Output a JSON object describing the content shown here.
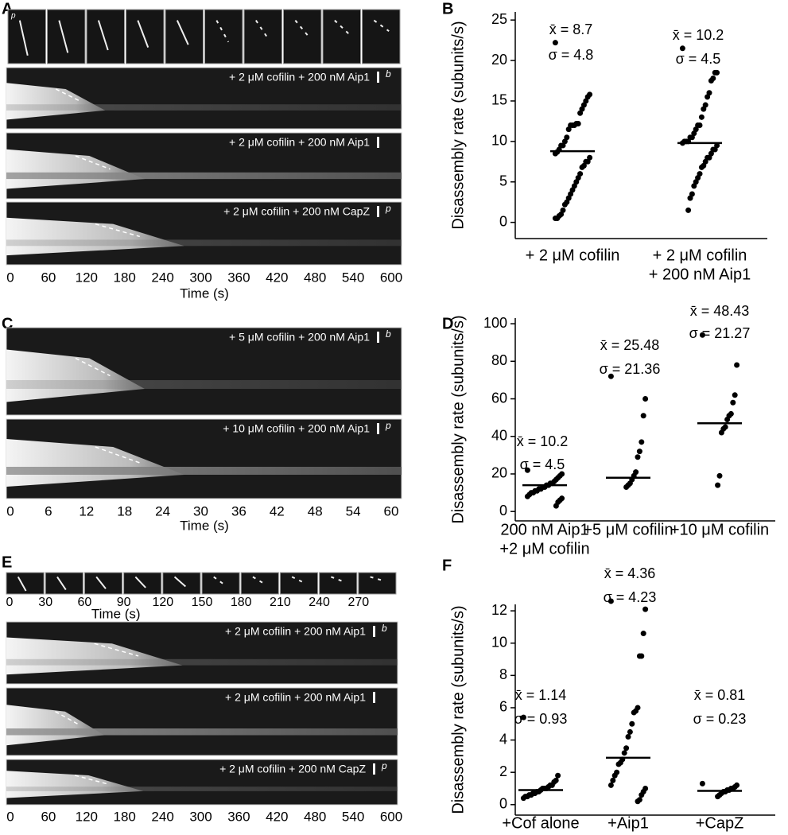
{
  "kymograph_panels": [
    {
      "label": "A",
      "thumb_label": "p",
      "rows": [
        {
          "text": "+ 2 μM cofilin + 200 nM Aip1",
          "end": "b"
        },
        {
          "text": "+ 2  μM cofilin + 200 nM Aip1"
        },
        {
          "text": "+ 2  μM cofilin + 200 nM CapZ",
          "end": "p"
        }
      ],
      "xlim": [
        0,
        600
      ],
      "xticks": [
        0,
        60,
        120,
        180,
        240,
        300,
        360,
        420,
        480,
        540,
        600
      ],
      "xlabel": "Time (s)"
    },
    {
      "label": "C",
      "rows": [
        {
          "text": "+ 5 μM cofilin + 200 nM Aip1",
          "end": "b"
        },
        {
          "text": "+ 10 μM cofilin + 200 nM Aip1",
          "end": "p"
        }
      ],
      "xlim": [
        0,
        60
      ],
      "xticks": [
        0,
        6,
        12,
        18,
        24,
        30,
        36,
        42,
        48,
        54,
        60
      ],
      "xlabel": "Time (s)"
    },
    {
      "label": "E",
      "thumb_xlim": [
        0,
        300
      ],
      "thumb_xticks": [
        0,
        30,
        60,
        90,
        120,
        150,
        180,
        210,
        240,
        270
      ],
      "thumb_xlabel": "Time (s)",
      "rows": [
        {
          "text": "+ 2 μM cofilin + 200 nM Aip1",
          "end": "b"
        },
        {
          "text": "+ 2  μM cofilin + 200 nM Aip1"
        },
        {
          "text": "+ 2  μM cofilin + 200 nM CapZ",
          "end": "p"
        }
      ],
      "xlim": [
        0,
        600
      ],
      "xticks": [
        0,
        60,
        120,
        180,
        240,
        300,
        360,
        420,
        480,
        540,
        600
      ]
    }
  ],
  "chart_data": [
    {
      "type": "strip",
      "label": "B",
      "ylabel": "Disassembly rate (subunits/s)",
      "categories": [
        [
          "+  2 μM cofilin"
        ],
        [
          "+ 2 μM cofilin",
          "+ 200 nM Aip1"
        ]
      ],
      "values": [
        [
          22.2,
          15.8,
          15.5,
          15,
          14.5,
          14,
          13.5,
          12.2,
          12.2,
          12,
          12,
          12,
          11.5,
          10.5,
          10,
          9.5,
          9.5,
          9,
          8.7,
          8.5,
          8,
          7.5,
          7.5,
          7,
          6.8,
          6,
          5.5,
          5,
          4.5,
          4,
          3.5,
          3,
          2.5,
          2.2,
          1.5,
          1,
          0.8,
          0.5,
          0.5
        ],
        [
          21.5,
          18.5,
          18.5,
          17.8,
          17.5,
          16,
          15.5,
          14.5,
          14,
          13,
          12,
          12,
          11.5,
          11,
          10.5,
          10.5,
          10,
          10,
          10,
          9.8,
          9.5,
          9,
          9,
          8.5,
          8,
          8,
          7.5,
          7,
          6.8,
          6,
          5.5,
          5,
          4.5,
          3.5,
          3,
          1.5
        ]
      ],
      "bar_values": [
        8.8,
        9.8
      ],
      "annotations": [
        "x̄ = 8.7",
        "σ = 4.8",
        "x̄ = 10.2",
        "σ = 4.5"
      ],
      "ylim": [
        -2,
        26
      ],
      "yticks": [
        0,
        5,
        10,
        15,
        20,
        25
      ],
      "color": "#000000"
    },
    {
      "type": "strip",
      "label": "D",
      "ylabel": "Disassembly rate (subunits/s)",
      "categories": [
        [
          "200 nM Aip1",
          "+2 μM cofilin"
        ],
        [
          "+5 μM cofilin"
        ],
        [
          "+10 μM cofilin"
        ]
      ],
      "values": [
        [
          22,
          20,
          19,
          18,
          17,
          16,
          15,
          15,
          14,
          14,
          13,
          13,
          12,
          12,
          11,
          11,
          10,
          10,
          9,
          8,
          7,
          6,
          5,
          3
        ],
        [
          72,
          60,
          51,
          37,
          32,
          29,
          21,
          19,
          17,
          15,
          14,
          13
        ],
        [
          94,
          78,
          62,
          58,
          52,
          51,
          49,
          45,
          44,
          42,
          19,
          14
        ]
      ],
      "bar_values": [
        14,
        18,
        47
      ],
      "annotations": [
        "x̄ = 10.2",
        "σ = 4.5",
        "x̄ = 25.48",
        "σ = 21.36",
        "x̄ = 48.43",
        "σ = 21.27"
      ],
      "ylim": [
        -5,
        103
      ],
      "yticks": [
        0,
        20,
        40,
        60,
        80,
        100
      ],
      "color": "#000000"
    },
    {
      "type": "strip",
      "label": "F",
      "ylabel": "Disassembly rate (subunits/s)",
      "categories": [
        [
          "+Cof alone"
        ],
        [
          "+Aip1"
        ],
        [
          "+CapZ"
        ]
      ],
      "values": [
        [
          5.4,
          1.8,
          1.5,
          1.4,
          1.2,
          1.2,
          1.1,
          1,
          1,
          1,
          0.9,
          0.8,
          0.8,
          0.7,
          0.7,
          0.6,
          0.6,
          0.5,
          0.5,
          0.4
        ],
        [
          12.6,
          12.1,
          10.6,
          9.2,
          9.2,
          6,
          5.8,
          5.7,
          5,
          4.5,
          4.2,
          3.5,
          3.2,
          2.8,
          2.6,
          2.5,
          2,
          1.8,
          1.5,
          1.2,
          1,
          0.8,
          0.6,
          0.3,
          0.2
        ],
        [
          1.3,
          1.2,
          1.1,
          1,
          1,
          0.9,
          0.9,
          0.8,
          0.8,
          0.7,
          0.6,
          0.5
        ]
      ],
      "bar_values": [
        0.9,
        2.9,
        0.85
      ],
      "annotations": [
        "x̄ = 1.14",
        "σ = 0.93",
        "x̄ = 4.36",
        "σ = 4.23",
        "x̄ = 0.81",
        "σ = 0.23"
      ],
      "ylim": [
        -0.65,
        12.4
      ],
      "yticks": [
        0,
        2,
        4,
        6,
        8,
        10,
        12
      ],
      "color": "#000000"
    }
  ]
}
